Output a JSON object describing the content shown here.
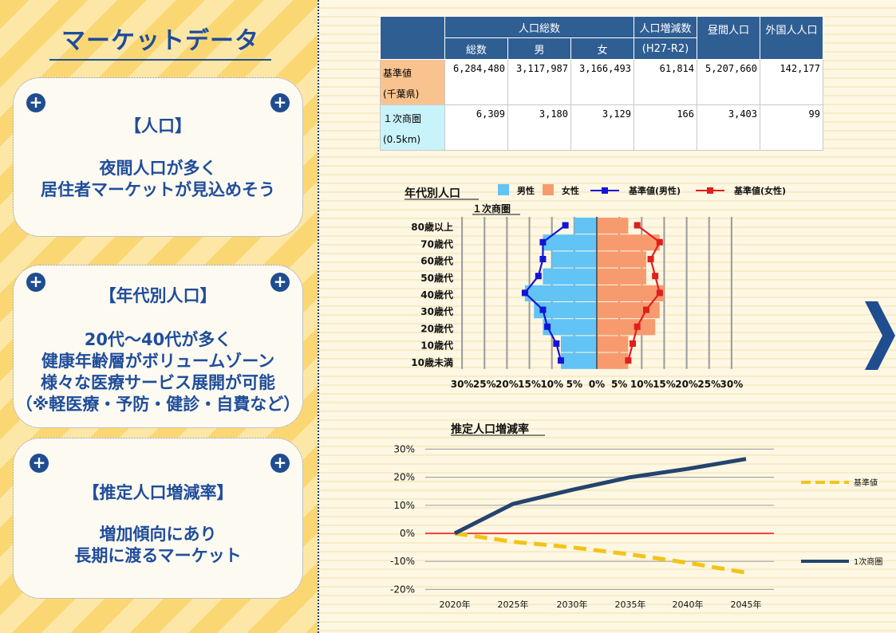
{
  "page": {
    "title": "マーケットデータ",
    "cards": [
      {
        "heading": "【人口】",
        "lines": [
          "夜間人口が多く",
          "居住者マーケットが見込めそう"
        ]
      },
      {
        "heading": "【年代別人口】",
        "lines": [
          "20代～40代が多く",
          "健康年齢層がボリュームゾーン",
          "様々な医療サービス展開が可能",
          "（※軽医療・予防・健診・自費など）"
        ]
      },
      {
        "heading": "【推定人口増減率】",
        "lines": [
          "増加傾向にあり",
          "長期に渡るマーケット"
        ]
      }
    ],
    "icons": {
      "card_corner": "plus-circle-icon",
      "next": "chevron-right-icon"
    },
    "colors": {
      "accent": "#1f4d9a",
      "male": "#62c3f5",
      "female": "#f79b6f",
      "male_line": "#1414d6",
      "female_line": "#e01e1e",
      "growth_base": "#f2c417",
      "growth_area": "#24446e",
      "zero_line": "#ee1111"
    }
  },
  "table": {
    "headers": {
      "population_total": "人口総数",
      "total": "総数",
      "male": "男",
      "female": "女",
      "change_line1": "人口増減数",
      "change_line2": "(H27-R2)",
      "daytime": "昼間人口",
      "foreign": "外国人人口"
    },
    "rows": [
      {
        "label1": "基準値",
        "label2": "(千葉県)",
        "total": "6,284,480",
        "male": "3,117,987",
        "female": "3,166,493",
        "change": "61,814",
        "daytime": "5,207,660",
        "foreign": "142,177"
      },
      {
        "label1": "１次商圏",
        "label2": "(0.5km)",
        "total": "6,309",
        "male": "3,180",
        "female": "3,129",
        "change": "166",
        "daytime": "3,403",
        "foreign": "99"
      }
    ]
  },
  "chart_data": [
    {
      "type": "bar",
      "orientation": "horizontal-pyramid",
      "title": "年代別人口",
      "subtitle": "１次商圏",
      "categories": [
        "80歳以上",
        "70歳代",
        "60歳代",
        "50歳代",
        "40歳代",
        "30歳代",
        "20歳代",
        "10歳代",
        "10歳未満"
      ],
      "series": [
        {
          "name": "男性",
          "kind": "bar",
          "side": "left",
          "values": [
            5,
            12,
            10,
            12,
            16,
            14,
            12,
            8,
            8
          ]
        },
        {
          "name": "女性",
          "kind": "bar",
          "side": "right",
          "values": [
            7,
            14,
            11,
            11,
            15,
            14,
            13,
            7,
            7
          ]
        },
        {
          "name": "基準値(男性)",
          "kind": "line",
          "side": "left",
          "values": [
            7,
            12,
            12,
            13,
            16,
            12,
            11,
            9,
            8
          ]
        },
        {
          "name": "基準値(女性)",
          "kind": "line",
          "side": "right",
          "values": [
            9,
            14,
            12,
            13,
            14,
            11,
            9,
            8,
            7
          ]
        }
      ],
      "x_ticks": [
        "30%",
        "25%",
        "20%",
        "15%",
        "10%",
        "5%",
        "0%",
        "5%",
        "10%",
        "15%",
        "20%",
        "25%",
        "30%"
      ],
      "xlim": [
        -30,
        30
      ],
      "legend": "top"
    },
    {
      "type": "line",
      "title": "推定人口増減率",
      "x": [
        "2020年",
        "2025年",
        "2030年",
        "2035年",
        "2040年",
        "2045年"
      ],
      "series": [
        {
          "name": "基準値",
          "style": "dashed",
          "values": [
            0,
            -3,
            -5,
            -7.5,
            -10.5,
            -14
          ]
        },
        {
          "name": "1次商圏",
          "style": "solid",
          "values": [
            0,
            10.5,
            15.5,
            20,
            23,
            26.5
          ]
        }
      ],
      "y_ticks": [
        "30%",
        "20%",
        "10%",
        "0%",
        "-10%",
        "-20%"
      ],
      "ylim": [
        -20,
        30
      ],
      "grid": true,
      "legend": "right"
    }
  ]
}
